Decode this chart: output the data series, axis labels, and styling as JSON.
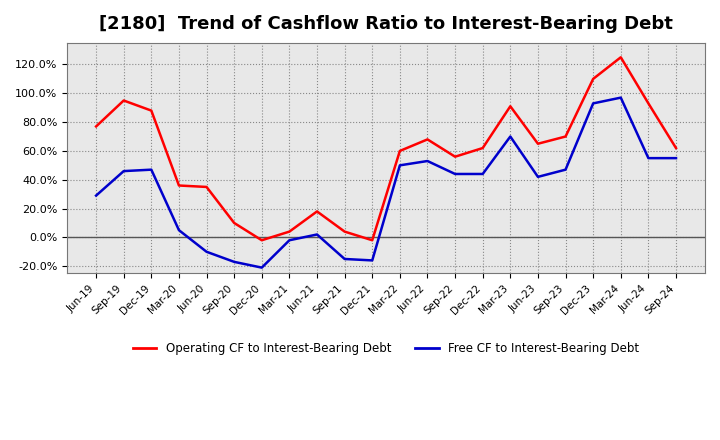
{
  "title": "[2180]  Trend of Cashflow Ratio to Interest-Bearing Debt",
  "x_labels": [
    "Jun-19",
    "Sep-19",
    "Dec-19",
    "Mar-20",
    "Jun-20",
    "Sep-20",
    "Dec-20",
    "Mar-21",
    "Jun-21",
    "Sep-21",
    "Dec-21",
    "Mar-22",
    "Jun-22",
    "Sep-22",
    "Dec-22",
    "Mar-23",
    "Jun-23",
    "Sep-23",
    "Dec-23",
    "Mar-24",
    "Jun-24",
    "Sep-24"
  ],
  "operating_cf": [
    0.77,
    0.95,
    0.88,
    0.36,
    0.35,
    0.1,
    -0.02,
    0.04,
    0.18,
    0.04,
    -0.02,
    0.6,
    0.68,
    0.56,
    0.62,
    0.91,
    0.65,
    0.7,
    1.1,
    1.25,
    0.93,
    0.62
  ],
  "free_cf": [
    0.29,
    0.46,
    0.47,
    0.05,
    -0.1,
    -0.17,
    -0.21,
    -0.02,
    0.02,
    -0.15,
    -0.16,
    0.5,
    0.53,
    0.44,
    0.44,
    0.7,
    0.42,
    0.47,
    0.93,
    0.97,
    0.55,
    0.55
  ],
  "operating_color": "#FF0000",
  "free_color": "#0000CC",
  "ylim": [
    -0.25,
    1.35
  ],
  "yticks": [
    -0.2,
    0.0,
    0.2,
    0.4,
    0.6,
    0.8,
    1.0,
    1.2
  ],
  "legend_op": "Operating CF to Interest-Bearing Debt",
  "legend_free": "Free CF to Interest-Bearing Debt",
  "bg_color": "#FFFFFF",
  "plot_bg_color": "#E8E8E8",
  "grid_color": "#888888",
  "title_fontsize": 13
}
